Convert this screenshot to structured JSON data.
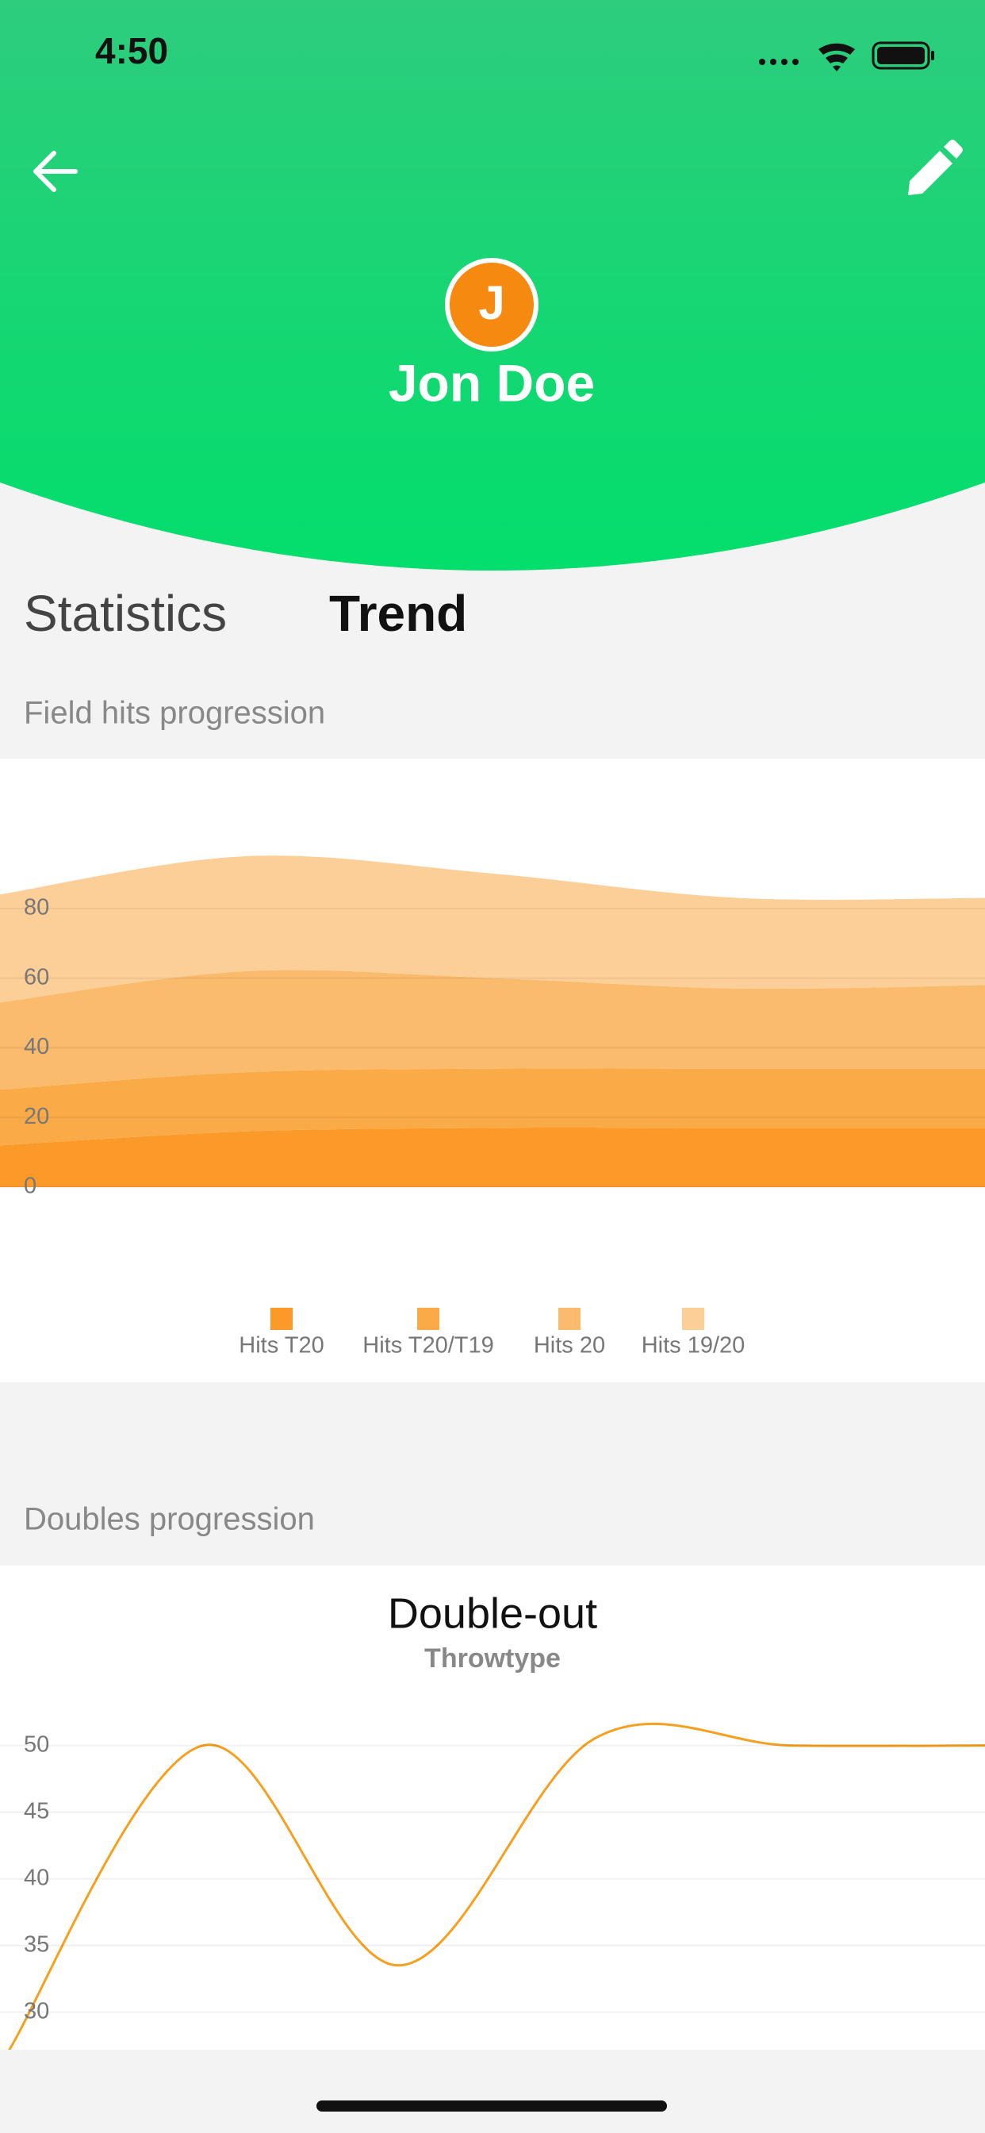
{
  "status_bar": {
    "time": "4:50"
  },
  "header": {
    "avatar_initial": "J",
    "name": "Jon Doe"
  },
  "tabs": [
    "Statistics",
    "Trend"
  ],
  "sections": [
    {
      "title": "Field hits progression"
    },
    {
      "title": "Doubles progression"
    }
  ],
  "chart_data": [
    {
      "type": "stacked-area",
      "categories": [
        null,
        null,
        null,
        null,
        null
      ],
      "series": [
        {
          "name": "Hits T20",
          "color": "#fb9a28",
          "values": [
            12,
            16,
            17,
            17,
            17
          ]
        },
        {
          "name": "Hits T20/T19",
          "color": "#fbaa48",
          "values": [
            16,
            17,
            17,
            17,
            17
          ]
        },
        {
          "name": "Hits 20",
          "color": "#fbbb6c",
          "values": [
            25,
            29,
            26,
            23,
            24
          ]
        },
        {
          "name": "Hits 19/20",
          "color": "#fdcf98",
          "values": [
            31,
            33,
            30,
            26,
            25
          ]
        }
      ],
      "ylim": [
        0,
        100
      ],
      "yticks": [
        0,
        20,
        40,
        60,
        80
      ],
      "grid": true,
      "legend": "bottom"
    },
    {
      "type": "line",
      "title": "Double-out",
      "subtitle": "Throwtype",
      "categories": [
        null,
        null,
        null,
        null,
        null,
        null
      ],
      "series": [
        {
          "name": null,
          "color": "#f5a020",
          "values": [
            27,
            50,
            33.5,
            50.5,
            50,
            50
          ]
        }
      ],
      "ylim": [
        27,
        52
      ],
      "yticks": [
        30,
        35,
        40,
        45,
        50
      ],
      "grid": true
    }
  ]
}
